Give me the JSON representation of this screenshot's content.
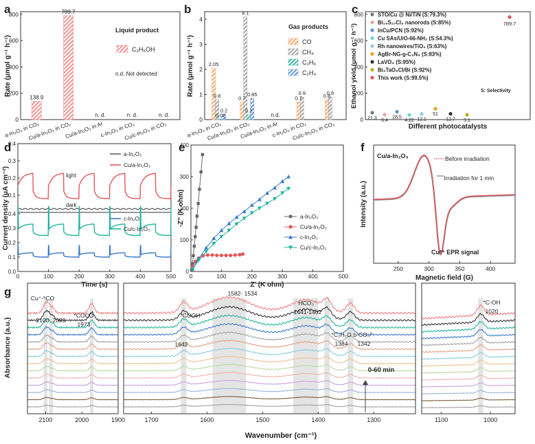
{
  "colors": {
    "ethanol": "#f08a8a",
    "co": "#f4a460",
    "ch4": "#9e9e9e",
    "c2h6": "#2bb3a3",
    "c2h4": "#5b8fd6",
    "red": "#e15759",
    "gray": "#666666",
    "blue": "#3a78c9",
    "teal": "#1fb59a"
  },
  "chart_data": [
    {
      "id": "a",
      "panel_label": "a",
      "type": "bar",
      "ylabel": "Rate (μmol g⁻¹ h⁻¹)",
      "ylim": [
        0,
        820
      ],
      "yticks": [
        "0",
        "200",
        "400",
        "600",
        "800"
      ],
      "ytick_values": [
        0,
        200,
        400,
        600,
        800
      ],
      "categories": [
        "a-In₂O₃ in CO₂",
        "Cu/a-In₂O₃ in CO₂",
        "Cu/a-In₂O₃ in Ar",
        "c-In₂O₃ in CO₂",
        "Cu/c-In₂O₃ in CO₂"
      ],
      "series": [
        {
          "name": "C₂H₅OH",
          "values": [
            138.9,
            789.7,
            0,
            0,
            0
          ]
        }
      ],
      "data_labels": [
        "138.9",
        "789.7",
        "n. d.",
        "n. d.",
        "n. d."
      ],
      "legend_title": "Liquid product",
      "legend": [
        "C₂H₅OH"
      ],
      "note": "n.d. Not detected"
    },
    {
      "id": "b",
      "panel_label": "b",
      "type": "bar",
      "ylabel": "Rate (μmol g⁻¹ h⁻¹)",
      "ylim": [
        0,
        4.3
      ],
      "yticks": [
        "0",
        "1",
        "2",
        "3",
        "4"
      ],
      "ytick_values": [
        0,
        1,
        2,
        3,
        4
      ],
      "categories": [
        "a-In₂O₃ in CO₂",
        "Cu/a-In₂O₃ in CO₂",
        "Cu/a-In₂O₃ in Ar",
        "c-In₂O₃ in CO₂",
        "Cu/c-In₂O₃ in CO₂"
      ],
      "series": [
        {
          "name": "CO",
          "values": [
            2.05,
            0.7,
            0,
            0.7,
            0.8
          ]
        },
        {
          "name": "CH₄",
          "values": [
            0.8,
            4.1,
            0,
            0.9,
            0.9
          ]
        },
        {
          "name": "C₂H₆",
          "values": [
            0.02,
            0.2,
            0,
            0,
            0
          ]
        },
        {
          "name": "C₂H₄",
          "values": [
            0.2,
            0.85,
            0,
            0,
            0
          ]
        }
      ],
      "data_labels": [
        {
          "text": "2.05",
          "cat": 0,
          "series": 0
        },
        {
          "text": "0.8",
          "cat": 0,
          "series": 1
        },
        {
          "text": "0.02",
          "cat": 0,
          "series": 2
        },
        {
          "text": "0.2",
          "cat": 0,
          "series": 3
        },
        {
          "text": "0.7",
          "cat": 1,
          "series": 0
        },
        {
          "text": "4.1",
          "cat": 1,
          "series": 1
        },
        {
          "text": "0.2",
          "cat": 1,
          "series": 2
        },
        {
          "text": "0.85",
          "cat": 1,
          "series": 3
        },
        {
          "text": "0.7",
          "cat": 3,
          "series": 0
        },
        {
          "text": "0.9",
          "cat": 3,
          "series": 1
        },
        {
          "text": "0.8",
          "cat": 4,
          "series": 0
        },
        {
          "text": "0.9",
          "cat": 4,
          "series": 1
        }
      ],
      "nd_label": "n.d.",
      "legend_title": "Gas products",
      "legend": [
        "CO",
        "CH₄",
        "C₂H₆",
        "C₂H₄"
      ]
    },
    {
      "id": "c",
      "panel_label": "c",
      "type": "scatter",
      "ylabel": "Ethanol yield (μmol g⁻¹ h⁻¹)",
      "xlabel": "Different photocatalysts",
      "ylim": [
        0,
        820
      ],
      "yticks": [
        "0",
        "200",
        "400",
        "600",
        "800"
      ],
      "ytick_values": [
        0,
        200,
        400,
        600,
        800
      ],
      "points": [
        {
          "name": "STO/Cu @ Ni/TiN (S:79.3%)",
          "value": 21.3,
          "label": "21.3",
          "color": "#777777"
        },
        {
          "name": "Bi₁₉S₂₇Cl₃ nanorods (S:85%)",
          "value": 6.4,
          "label": "6.4",
          "color": "#f4a0a0"
        },
        {
          "name": "InCu/PCN (S:92%)",
          "value": 28.5,
          "label": "28.5",
          "color": "#5b8fd6"
        },
        {
          "name": "Cu SAs/UiO-66-NH₂ (S:54.3%)",
          "value": 4.22,
          "label": "4.22",
          "color": "#6fd4c8"
        },
        {
          "name": "Rh nanowires/TiO₂ (S:63%)",
          "value": 12.1,
          "label": "12.1",
          "color": "#8fc8e8"
        },
        {
          "name": "AgBr-NG-g-C₃N₄ (S:83%)",
          "value": 51,
          "label": "51",
          "color": "#f0a020"
        },
        {
          "name": "LaVO₄ (S:95%)",
          "value": 12.7,
          "label": "12.7",
          "color": "#333333"
        },
        {
          "name": "Bi₄TaO₈Cl/Bi (S:92%)",
          "value": 5.1,
          "label": "5.1",
          "color": "#b8b020"
        },
        {
          "name": "This work (S:99.5%)",
          "value": 789.7,
          "label": "789.7",
          "color": "#e15759"
        }
      ],
      "note": "S: Selectivity"
    },
    {
      "id": "d",
      "panel_label": "d",
      "type": "line",
      "xlabel": "Time (s)",
      "ylabel": "Current density (μA cm⁻²)",
      "xlim": [
        0,
        500
      ],
      "xticks": [
        "0",
        "100",
        "200",
        "300",
        "400",
        "500"
      ],
      "xtick_values": [
        0,
        100,
        200,
        300,
        400,
        500
      ],
      "top_ylim": [
        0,
        0.4
      ],
      "top_yticks": [
        "0.0",
        "0.1",
        "0.2",
        "0.3",
        "0.4"
      ],
      "top_ytick_values": [
        0,
        0.1,
        0.2,
        0.3,
        0.4
      ],
      "bottom_ylim": [
        0,
        0.4
      ],
      "bottom_yticks": [
        "0.0",
        "0.1",
        "0.2",
        "0.3",
        "0.4"
      ],
      "bottom_ytick_values": [
        0,
        0.1,
        0.2,
        0.3,
        0.4
      ],
      "light_on_times": [
        0,
        100,
        200,
        300,
        400
      ],
      "series": [
        {
          "name": "a-In₂O₃",
          "subplot": "top",
          "base": 0.02,
          "on": 0.02
        },
        {
          "name": "Cu/a-In₂O₃",
          "subplot": "top",
          "base": 0.08,
          "on": 0.23
        },
        {
          "name": "c-In₂O₃",
          "subplot": "bottom",
          "base": 0.1,
          "on": 0.13
        },
        {
          "name": "Cu/c-In₂O₃",
          "subplot": "bottom",
          "base": 0.25,
          "on": 0.33
        }
      ],
      "annotations": [
        "light",
        "dark"
      ]
    },
    {
      "id": "e",
      "panel_label": "e",
      "type": "scatter",
      "xlabel": "Z' (K ohm)",
      "ylabel": "-Z'' (K ohm)",
      "xlim": [
        0,
        500
      ],
      "ylim": [
        0,
        400
      ],
      "xticks": [
        "0",
        "100",
        "200",
        "300",
        "400",
        "500"
      ],
      "xtick_values": [
        0,
        100,
        200,
        300,
        400,
        500
      ],
      "yticks": [
        "0",
        "100",
        "200",
        "300",
        "400"
      ],
      "ytick_values": [
        0,
        100,
        200,
        300,
        400
      ],
      "series": [
        {
          "name": "a-In₂O₃",
          "x": [
            2,
            5,
            8,
            11,
            14,
            17,
            20,
            24,
            28,
            33,
            38
          ],
          "y": [
            5,
            25,
            50,
            80,
            110,
            140,
            175,
            215,
            260,
            315,
            370
          ]
        },
        {
          "name": "Cu/a-In₂O₃",
          "x": [
            5,
            15,
            25,
            40,
            55,
            70,
            85,
            100,
            115,
            130,
            145,
            160,
            170
          ],
          "y": [
            15,
            32,
            42,
            50,
            52,
            52,
            51,
            51,
            51,
            51,
            52,
            53,
            55
          ]
        },
        {
          "name": "c-In₂O₃",
          "x": [
            5,
            25,
            50,
            75,
            100,
            125,
            150,
            175,
            200,
            225,
            250,
            275,
            300,
            320
          ],
          "y": [
            8,
            40,
            75,
            105,
            130,
            152,
            172,
            190,
            210,
            228,
            248,
            265,
            285,
            300
          ]
        },
        {
          "name": "Cu/c-In₂O₃",
          "x": [
            5,
            25,
            50,
            75,
            100,
            125,
            150,
            175,
            200,
            225,
            250,
            275,
            300,
            320
          ],
          "y": [
            7,
            35,
            63,
            88,
            110,
            130,
            150,
            168,
            185,
            200,
            215,
            230,
            248,
            262
          ]
        }
      ]
    },
    {
      "id": "f",
      "panel_label": "f",
      "type": "line",
      "xlabel": "Magnetic field (G)",
      "ylabel": "Intensity (a.u.)",
      "xlim": [
        210,
        440
      ],
      "xticks": [
        "250",
        "300",
        "350",
        "400"
      ],
      "xtick_values": [
        250,
        300,
        350,
        400
      ],
      "title": "Cu/a-In₂O₃",
      "series": [
        {
          "name": "Before irradiation"
        },
        {
          "name": "Irradiation for 1 min"
        }
      ],
      "annotation": "Cu²⁺ EPR signal"
    },
    {
      "id": "g",
      "panel_label": "g",
      "type": "line",
      "xlabel": "Wavenumber (cm⁻¹)",
      "ylabel": "Absorbance (a.u.)",
      "time_label": "0-60 min",
      "panels": [
        {
          "xlim": [
            2150,
            1900
          ],
          "xticks": [
            "2100",
            "2000",
            "1900"
          ],
          "xtick_values": [
            2100,
            2000,
            1900
          ]
        },
        {
          "xlim": [
            1750,
            1225
          ],
          "xticks": [
            "1700",
            "1600",
            "1500",
            "1400",
            "1300"
          ],
          "xtick_values": [
            1700,
            1600,
            1500,
            1400,
            1300
          ]
        },
        {
          "xlim": [
            1140,
            950
          ],
          "xticks": [
            "1100",
            "1000"
          ],
          "xtick_values": [
            1100,
            1000
          ]
        }
      ],
      "bands": [
        {
          "panel": 0,
          "from": 2105,
          "to": 2095,
          "label": [
            "Cu⁺-*CO",
            "2100"
          ]
        },
        {
          "panel": 0,
          "from": 2090,
          "to": 2080,
          "label": [
            "",
            "2085"
          ]
        },
        {
          "panel": 0,
          "from": 1978,
          "to": 1968,
          "label": [
            "*COCO",
            "1973"
          ]
        },
        {
          "panel": 1,
          "from": 1647,
          "to": 1637,
          "label": [
            "*COOH",
            "1642"
          ]
        },
        {
          "panel": 1,
          "from": 1590,
          "to": 1530,
          "label": [
            "1582- 1534"
          ]
        },
        {
          "panel": 1,
          "from": 1445,
          "to": 1400,
          "label": [
            "HCO₃⁻",
            "1441-1402"
          ]
        },
        {
          "panel": 1,
          "from": 1389,
          "to": 1379,
          "label": [
            "*C₂H₅O",
            "1384"
          ]
        },
        {
          "panel": 1,
          "from": 1347,
          "to": 1337,
          "label": [
            "b-CO₃²⁻",
            "1342"
          ]
        },
        {
          "panel": 2,
          "from": 1025,
          "to": 1015,
          "label": [
            "*C-OH",
            "1020"
          ]
        }
      ],
      "traces": [
        {
          "color": "#9e9e9e",
          "amp": 0.15
        },
        {
          "color": "#7a5c3c",
          "amp": 0.2
        },
        {
          "color": "#9ab0d8",
          "amp": 0.25
        },
        {
          "color": "#c8a0e0",
          "amp": 0.3
        },
        {
          "color": "#f0b0b0",
          "amp": 0.35
        },
        {
          "color": "#b8d8a0",
          "amp": 0.4
        },
        {
          "color": "#f0c090",
          "amp": 0.45
        },
        {
          "color": "#88ccdd",
          "amp": 0.5
        },
        {
          "color": "#e0a080",
          "amp": 0.55
        },
        {
          "color": "#a0a0a0",
          "amp": 0.6
        },
        {
          "color": "#3a78c9",
          "amp": 0.68
        },
        {
          "color": "#1fb59a",
          "amp": 0.76
        },
        {
          "color": "#333333",
          "amp": 0.85
        },
        {
          "color": "#f08080",
          "amp": 1.0
        }
      ]
    }
  ]
}
